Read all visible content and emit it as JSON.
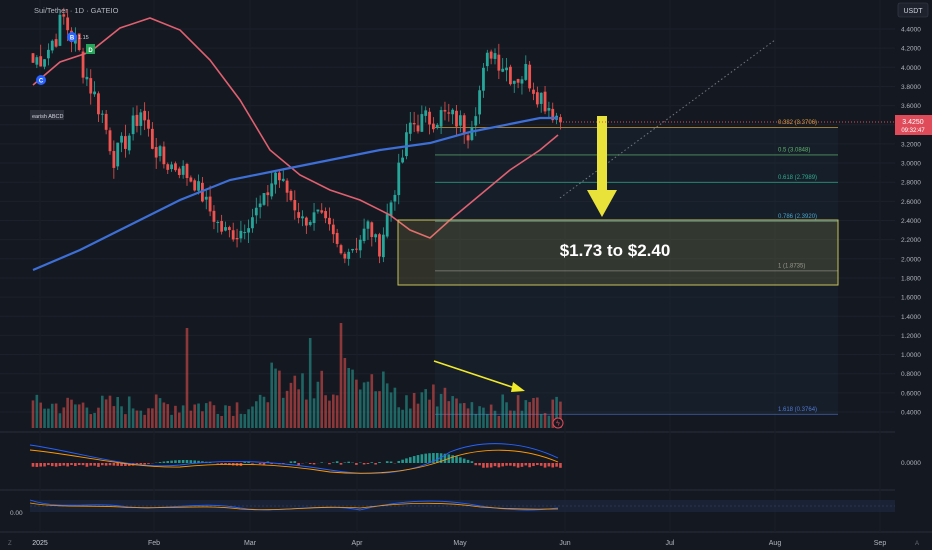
{
  "header": {
    "symbol_title": "Sui/Tether · 1D · GATEIO",
    "currency_button": "USDT"
  },
  "price_tag": {
    "value": "3.4250",
    "countdown": "09:32:47"
  },
  "price_axis_labels": [
    "4.4000",
    "4.2000",
    "4.0000",
    "3.8000",
    "3.6000",
    "3.4000",
    "3.2000",
    "3.0000",
    "2.8000",
    "2.6000",
    "2.4000",
    "2.2000",
    "2.0000",
    "1.8000",
    "1.6000",
    "1.4000",
    "1.2000",
    "1.0000",
    "0.8000",
    "0.6000",
    "0.4000"
  ],
  "macd_axis_label": "0.0000",
  "osc_axis_label": "0.00",
  "time_axis_labels": [
    "2025",
    "Feb",
    "Mar",
    "Apr",
    "May",
    "Jun",
    "Jul",
    "Aug",
    "Sep"
  ],
  "pattern_label": "earish ABCD",
  "pattern_points": [
    "C",
    "B",
    "D"
  ],
  "b_ratio": "1.15",
  "target_zone_label": "$1.73 to $2.40",
  "fib_levels": [
    {
      "label": "0.382 (3.3706)",
      "color": "#d9a441"
    },
    {
      "label": "0.5 (3.0848)",
      "color": "#5fb56a"
    },
    {
      "label": "0.618 (2.7989)",
      "color": "#2fae8f"
    },
    {
      "label": "0.786 (2.3920)",
      "color": "#4aa6c8"
    },
    {
      "label": "1 (1.8735)",
      "color": "#8c8f96"
    },
    {
      "label": "1.618 (0.3764)",
      "color": "#4f7ad8"
    }
  ],
  "colors": {
    "up": "#26a69a",
    "down": "#ef5350",
    "ma_fast": "#e06070",
    "ma_slow": "#3d6fd6",
    "arrow": "#f2ea2a",
    "price_tag": "#e04b5a"
  },
  "chart_data": {
    "type": "candlestick",
    "title": "Sui/Tether · 1D · GATEIO",
    "x_ticks": [
      "2025",
      "Feb",
      "Mar",
      "Apr",
      "May",
      "Jun",
      "Jul",
      "Aug",
      "Sep"
    ],
    "ylim": [
      0.3,
      4.55
    ],
    "ytick_step": 0.2,
    "last_price": 3.425,
    "zone": [
      1.73,
      2.4
    ],
    "fib_values": [
      3.3706,
      3.0848,
      2.7989,
      2.392,
      1.8735,
      0.3764
    ],
    "close_path": [
      [
        0,
        4.05
      ],
      [
        4,
        4.2
      ],
      [
        8,
        4.5
      ],
      [
        11,
        4.25
      ],
      [
        14,
        3.9
      ],
      [
        18,
        3.5
      ],
      [
        21,
        3.05
      ],
      [
        25,
        3.3
      ],
      [
        28,
        3.55
      ],
      [
        31,
        3.2
      ],
      [
        34,
        3.0
      ],
      [
        38,
        2.95
      ],
      [
        42,
        2.8
      ],
      [
        46,
        2.5
      ],
      [
        49,
        2.3
      ],
      [
        53,
        2.25
      ],
      [
        56,
        2.4
      ],
      [
        60,
        2.6
      ],
      [
        63,
        2.9
      ],
      [
        66,
        2.7
      ],
      [
        70,
        2.4
      ],
      [
        74,
        2.45
      ],
      [
        77,
        2.3
      ],
      [
        80,
        2.05
      ],
      [
        84,
        2.15
      ],
      [
        87,
        2.35
      ],
      [
        90,
        2.1
      ],
      [
        92,
        2.45
      ],
      [
        95,
        2.9
      ],
      [
        98,
        3.4
      ],
      [
        102,
        3.45
      ],
      [
        106,
        3.5
      ],
      [
        110,
        3.45
      ],
      [
        113,
        3.35
      ],
      [
        116,
        3.75
      ],
      [
        119,
        4.2
      ],
      [
        122,
        4.05
      ],
      [
        125,
        3.9
      ],
      [
        128,
        3.95
      ],
      [
        131,
        3.75
      ],
      [
        134,
        3.6
      ],
      [
        136,
        3.5
      ],
      [
        137,
        3.425
      ]
    ],
    "volume_spikes": [
      [
        40,
        1.0
      ],
      [
        72,
        0.9
      ],
      [
        80,
        1.05
      ],
      [
        81,
        0.7
      ],
      [
        82,
        0.6
      ],
      [
        99,
        0.35
      ],
      [
        130,
        0.3
      ]
    ],
    "annotations": [
      "down arrow to target zone",
      "falling volume arrow"
    ]
  }
}
